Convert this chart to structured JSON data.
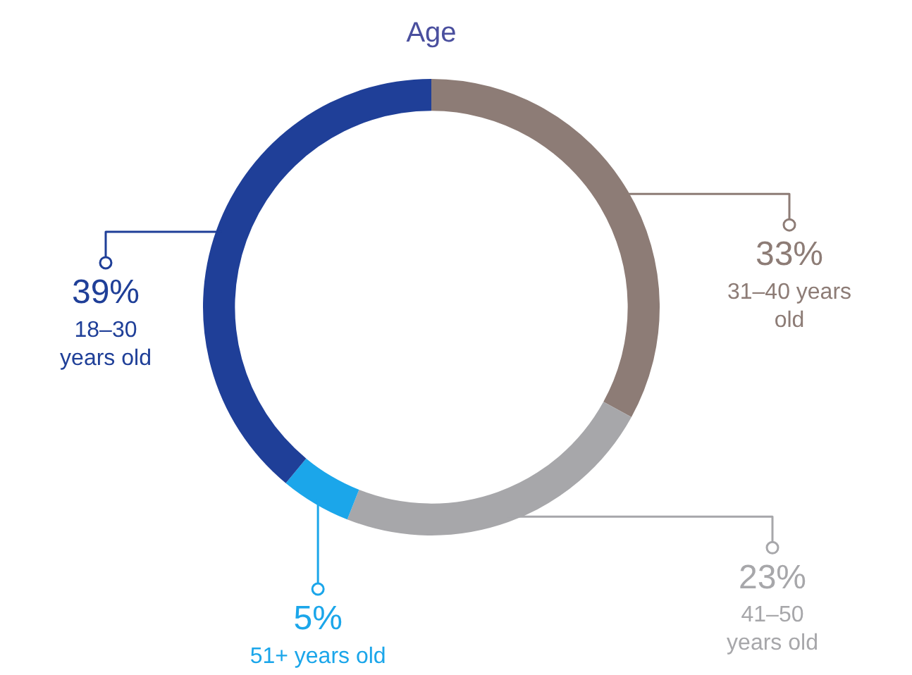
{
  "chart_data": {
    "type": "donut",
    "title": "Age",
    "categories": [
      "31–40 years old",
      "41–50 years old",
      "51+ years old",
      "18–30 years old"
    ],
    "values": [
      33,
      23,
      5,
      39
    ],
    "colors": [
      "#8d7c76",
      "#a7a7aa",
      "#1ba6ea",
      "#1f3f98"
    ],
    "value_labels": [
      "33%",
      "23%",
      "5%",
      "39%"
    ],
    "legend": false
  }
}
